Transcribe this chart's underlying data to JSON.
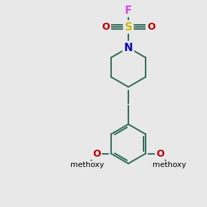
{
  "bg_color": "#e8e8e8",
  "bond_color": "#2d6b58",
  "bond_width": 1.5,
  "atom_colors": {
    "F": "#dd44ee",
    "S": "#ccbb00",
    "O": "#cc0000",
    "N": "#0000cc",
    "C": "#000000"
  },
  "fig_w": 3.0,
  "fig_h": 3.0,
  "dpi": 100,
  "xlim": [
    0,
    10
  ],
  "ylim": [
    0,
    10
  ]
}
